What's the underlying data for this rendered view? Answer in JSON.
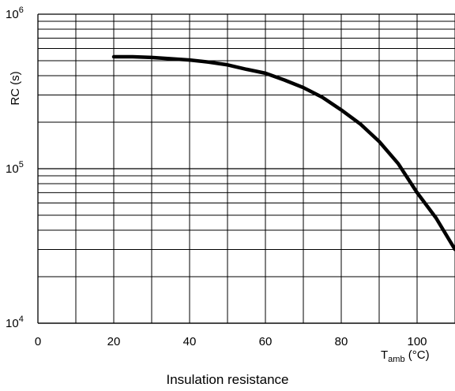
{
  "chart_data": {
    "type": "line",
    "title": "",
    "caption": "Insulation resistance",
    "ylabel": "RC (s)",
    "xlabel": {
      "main": "T",
      "sub": "amb",
      "unit": " (°C)"
    },
    "yscale": "log",
    "xlim": [
      0,
      110
    ],
    "ylim": [
      10000,
      1000000
    ],
    "x_ticks": [
      0,
      20,
      40,
      60,
      80,
      100
    ],
    "y_ticks": [
      {
        "value": 10000,
        "base": "10",
        "exp": "4"
      },
      {
        "value": 100000,
        "base": "10",
        "exp": "5"
      },
      {
        "value": 1000000,
        "base": "10",
        "exp": "6"
      }
    ],
    "grid": {
      "x_every": 10,
      "y_minor_decade_multipliers": [
        2,
        3,
        4,
        5,
        6,
        7,
        8,
        9
      ]
    },
    "series": [
      {
        "x": [
          20,
          25,
          30,
          35,
          40,
          45,
          50,
          55,
          60,
          65,
          70,
          75,
          80,
          85,
          90,
          95,
          100,
          105,
          110
        ],
        "y": [
          530000,
          530000,
          525000,
          515000,
          505000,
          490000,
          470000,
          440000,
          415000,
          375000,
          335000,
          290000,
          240000,
          195000,
          150000,
          108000,
          70000,
          48000,
          30000
        ]
      }
    ],
    "line_color": "#000000",
    "grid_color": "#000000"
  }
}
